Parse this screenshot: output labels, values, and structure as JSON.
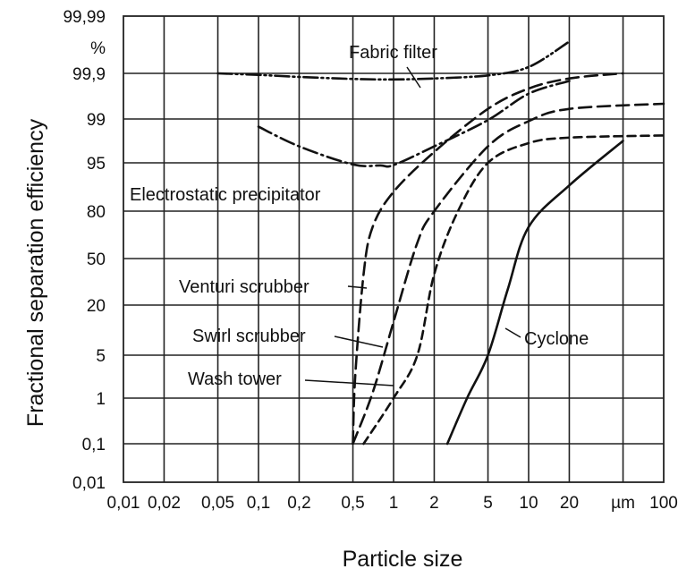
{
  "chart_data": {
    "type": "line",
    "title": "",
    "xlabel": "Particle size",
    "ylabel": "Fractional separation efficiency",
    "x_scale": "log",
    "y_scale": "probability",
    "xlim": [
      0.01,
      100
    ],
    "grid": true,
    "x_ticks": [
      "0,01",
      "0,02",
      "0,05",
      "0,1",
      "0,2",
      "0,5",
      "1",
      "2",
      "5",
      "10",
      "20",
      "µm",
      "100"
    ],
    "x_tick_values": [
      0.01,
      0.02,
      0.05,
      0.1,
      0.2,
      0.5,
      1,
      2,
      5,
      10,
      20,
      50,
      100
    ],
    "y_ticks": [
      "99,99",
      "%",
      "99,9",
      "99",
      "95",
      "80",
      "50",
      "20",
      "5",
      "1",
      "0,1",
      "0,01"
    ],
    "y_tick_values": [
      99.99,
      null,
      99.9,
      99,
      95,
      80,
      50,
      20,
      5,
      1,
      0.1,
      0.01
    ],
    "series": [
      {
        "name": "Fabric filter",
        "style": "dash-dot-dot",
        "points": [
          [
            0.05,
            99.9
          ],
          [
            0.1,
            99.87
          ],
          [
            0.2,
            99.83
          ],
          [
            0.5,
            99.79
          ],
          [
            1,
            99.78
          ],
          [
            2,
            99.8
          ],
          [
            5,
            99.86
          ],
          [
            10,
            99.91
          ],
          [
            20,
            99.95
          ]
        ]
      },
      {
        "name": "Electrostatic precipitator",
        "style": "dash-dot",
        "points": [
          [
            0.1,
            98.3
          ],
          [
            0.2,
            96.5
          ],
          [
            0.5,
            94.5
          ],
          [
            0.8,
            94.2
          ],
          [
            1,
            94.3
          ],
          [
            2,
            96.5
          ],
          [
            5,
            98.9
          ],
          [
            10,
            99.5
          ],
          [
            20,
            99.75
          ]
        ]
      },
      {
        "name": "Venturi scrubber",
        "style": "long-dash",
        "points": [
          [
            0.5,
            0.1
          ],
          [
            0.52,
            3
          ],
          [
            0.6,
            40
          ],
          [
            0.7,
            70
          ],
          [
            1,
            86
          ],
          [
            2,
            96
          ],
          [
            5,
            99.2
          ],
          [
            10,
            99.6
          ],
          [
            20,
            99.8
          ],
          [
            50,
            99.9
          ]
        ]
      },
      {
        "name": "Swirl scrubber",
        "style": "long-dash",
        "points": [
          [
            0.5,
            0.1
          ],
          [
            0.7,
            1.5
          ],
          [
            1,
            15
          ],
          [
            1.5,
            60
          ],
          [
            2,
            80
          ],
          [
            5,
            96.5
          ],
          [
            10,
            98.8
          ],
          [
            20,
            99.2
          ],
          [
            100,
            99.3
          ]
        ]
      },
      {
        "name": "Wash tower",
        "style": "short-dash",
        "points": [
          [
            0.6,
            0.1
          ],
          [
            1,
            1
          ],
          [
            1.5,
            5
          ],
          [
            2,
            40
          ],
          [
            3,
            80
          ],
          [
            5,
            95
          ],
          [
            10,
            96.8
          ],
          [
            20,
            97.3
          ],
          [
            100,
            97.5
          ]
        ]
      },
      {
        "name": "Cyclone",
        "style": "solid",
        "points": [
          [
            2.5,
            0.1
          ],
          [
            3.5,
            1
          ],
          [
            5,
            5
          ],
          [
            7,
            30
          ],
          [
            10,
            70
          ],
          [
            20,
            88
          ],
          [
            50,
            97
          ]
        ]
      }
    ]
  }
}
